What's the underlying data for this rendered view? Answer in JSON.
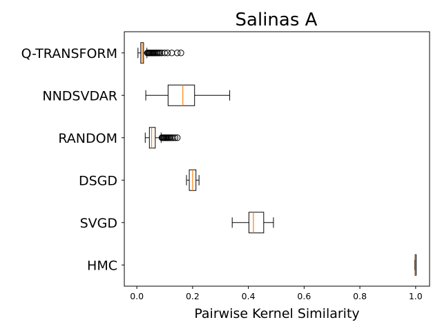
{
  "chart_data": {
    "type": "boxplot",
    "orientation": "horizontal",
    "title": "Salinas A",
    "xlabel": "Pairwise Kernel Similarity",
    "ylabel": "",
    "xlim": [
      -0.045,
      1.05
    ],
    "xticks": [
      0.0,
      0.2,
      0.4,
      0.6,
      0.8,
      1.0
    ],
    "xtick_labels": [
      "0.0",
      "0.2",
      "0.4",
      "0.6",
      "0.8",
      "1.0"
    ],
    "grid": false,
    "colors": {
      "box": "#000000",
      "median": "#ff7f0e"
    },
    "categories": [
      "Q-TRANSFORM",
      "NNDSVDAR",
      "RANDOM",
      "DSGD",
      "SVGD",
      "HMC"
    ],
    "boxes": [
      {
        "label": "Q-TRANSFORM",
        "whislo": 0.004,
        "q1": 0.014,
        "med": 0.019,
        "q3": 0.024,
        "whishi": 0.036,
        "fliers": [
          0.038,
          0.041,
          0.044,
          0.047,
          0.05,
          0.053,
          0.056,
          0.059,
          0.062,
          0.066,
          0.07,
          0.074,
          0.078,
          0.083,
          0.09,
          0.1,
          0.11,
          0.125,
          0.145,
          0.158
        ]
      },
      {
        "label": "NNDSVDAR",
        "whislo": 0.032,
        "q1": 0.112,
        "med": 0.165,
        "q3": 0.207,
        "whishi": 0.333,
        "fliers": []
      },
      {
        "label": "RANDOM",
        "whislo": 0.03,
        "q1": 0.045,
        "med": 0.053,
        "q3": 0.066,
        "whishi": 0.087,
        "fliers": [
          0.09,
          0.093,
          0.096,
          0.099,
          0.102,
          0.105,
          0.108,
          0.111,
          0.115,
          0.119,
          0.124,
          0.13,
          0.137,
          0.145
        ]
      },
      {
        "label": "DSGD",
        "whislo": 0.178,
        "q1": 0.188,
        "med": 0.2,
        "q3": 0.212,
        "whishi": 0.223,
        "fliers": []
      },
      {
        "label": "SVGD",
        "whislo": 0.342,
        "q1": 0.402,
        "med": 0.418,
        "q3": 0.455,
        "whishi": 0.49,
        "fliers": []
      },
      {
        "label": "HMC",
        "whislo": 0.997,
        "q1": 0.998,
        "med": 0.999,
        "q3": 1.0,
        "whishi": 1.001,
        "fliers": []
      }
    ]
  }
}
